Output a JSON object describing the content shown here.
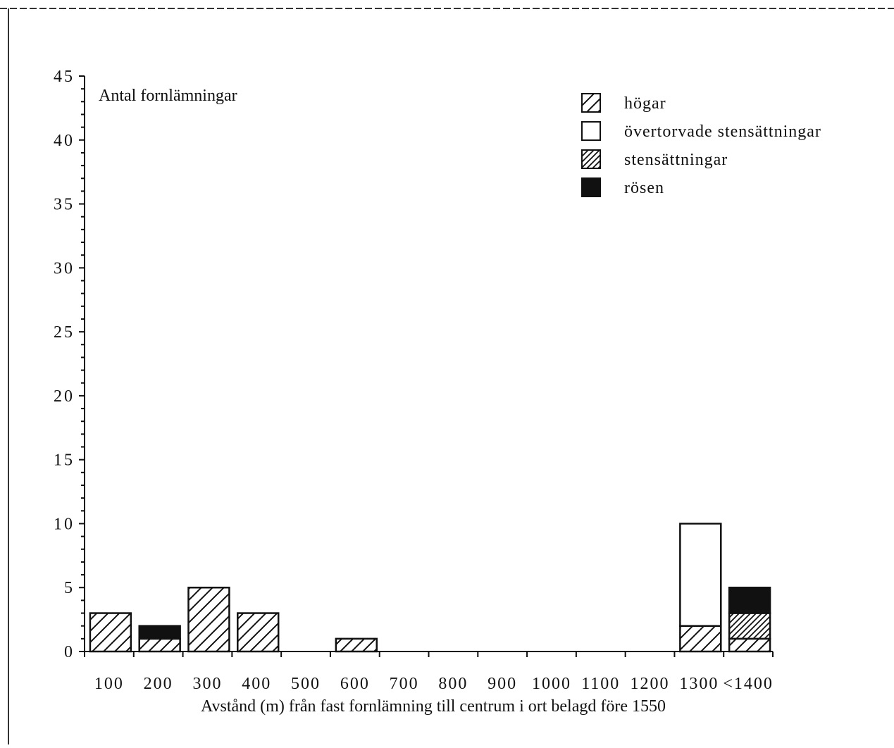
{
  "chart_data": {
    "type": "bar",
    "stacked": true,
    "ylabel": "Antal fornlämningar",
    "xlabel": "Avstånd (m) från fast fornlämning till centrum i ort belagd före 1550",
    "ylim": [
      0,
      45
    ],
    "yticks": [
      "0",
      "5",
      "10",
      "15",
      "20",
      "25",
      "30",
      "35",
      "40",
      "45"
    ],
    "categories": [
      "100",
      "200",
      "300",
      "400",
      "500",
      "600",
      "700",
      "800",
      "900",
      "1000",
      "1100",
      "1200",
      "1300",
      "<1400"
    ],
    "legend_position": "top-right",
    "series": [
      {
        "name": "högar",
        "pattern": "hatch-sparse",
        "values": [
          3,
          1,
          5,
          3,
          0,
          1,
          0,
          0,
          0,
          0,
          0,
          0,
          2,
          1
        ]
      },
      {
        "name": "övertorvade stensättningar",
        "pattern": "empty",
        "values": [
          0,
          0,
          0,
          0,
          0,
          0,
          0,
          0,
          0,
          0,
          0,
          0,
          8,
          0
        ]
      },
      {
        "name": "stensättningar",
        "pattern": "hatch-dense",
        "values": [
          0,
          0,
          0,
          0,
          0,
          0,
          0,
          0,
          0,
          0,
          0,
          0,
          0,
          2
        ]
      },
      {
        "name": "rösen",
        "pattern": "solid",
        "values": [
          0,
          1,
          0,
          0,
          0,
          0,
          0,
          0,
          0,
          0,
          0,
          0,
          0,
          2
        ]
      }
    ],
    "colors": {
      "ink": "#111111",
      "background": "#ffffff"
    }
  }
}
